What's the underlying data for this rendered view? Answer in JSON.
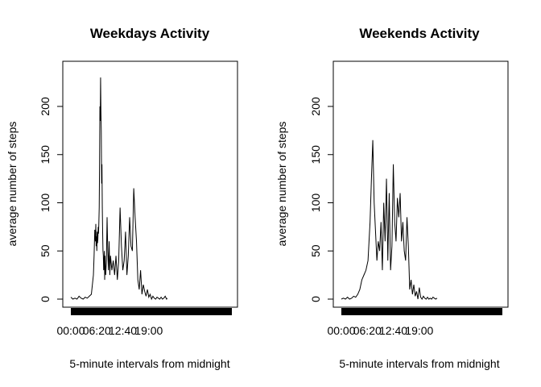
{
  "chart_data": [
    {
      "type": "line",
      "title": "Weekdays Activity",
      "xlabel": "5-minute intervals from midnight",
      "ylabel": "average number of steps",
      "xlim": [
        0,
        2355
      ],
      "ylim": [
        0,
        230
      ],
      "y_ticks": [
        "0",
        "50",
        "100",
        "150",
        "200"
      ],
      "x_ticks": [
        "00:00",
        "06:20",
        "12:40",
        "19:00"
      ],
      "x_tick_values": [
        0,
        380,
        760,
        1140
      ],
      "rug": true,
      "series": [
        {
          "x": [
            0,
            30,
            60,
            90,
            120,
            150,
            180,
            210,
            240,
            270,
            300,
            330,
            340,
            350,
            360,
            365,
            370,
            375,
            380,
            385,
            390,
            395,
            400,
            405,
            410,
            415,
            420,
            425,
            430,
            435,
            440,
            445,
            450,
            455,
            460,
            465,
            470,
            475,
            480,
            485,
            490,
            495,
            500,
            505,
            510,
            520,
            530,
            540,
            550,
            560,
            570,
            580,
            600,
            620,
            640,
            660,
            680,
            700,
            720,
            740,
            760,
            780,
            800,
            820,
            840,
            860,
            880,
            900,
            920,
            940,
            960,
            980,
            1000,
            1020,
            1040,
            1060,
            1080,
            1100,
            1120,
            1140,
            1160,
            1180,
            1200,
            1220,
            1240,
            1260,
            1280,
            1300,
            1320,
            1340,
            1360,
            1380,
            1400,
            1410
          ],
          "values": [
            2,
            0,
            1,
            0,
            3,
            1,
            0,
            2,
            1,
            3,
            5,
            25,
            45,
            72,
            60,
            78,
            55,
            65,
            50,
            70,
            58,
            62,
            75,
            68,
            80,
            95,
            140,
            200,
            185,
            230,
            195,
            175,
            120,
            140,
            95,
            70,
            50,
            45,
            30,
            35,
            50,
            20,
            45,
            30,
            25,
            40,
            85,
            50,
            30,
            60,
            25,
            45,
            30,
            40,
            25,
            45,
            20,
            40,
            95,
            55,
            30,
            40,
            70,
            25,
            45,
            85,
            55,
            50,
            115,
            85,
            60,
            20,
            10,
            30,
            5,
            15,
            8,
            3,
            10,
            2,
            5,
            0,
            3,
            1,
            0,
            2,
            1,
            0,
            2,
            0,
            1,
            3,
            0,
            1
          ]
        }
      ]
    },
    {
      "type": "line",
      "title": "Weekends Activity",
      "xlabel": "5-minute intervals from midnight",
      "ylabel": "average number of steps",
      "xlim": [
        0,
        2355
      ],
      "ylim": [
        0,
        230
      ],
      "y_ticks": [
        "0",
        "50",
        "100",
        "150",
        "200"
      ],
      "x_ticks": [
        "00:00",
        "06:20",
        "12:40",
        "19:00"
      ],
      "x_tick_values": [
        0,
        380,
        760,
        1140
      ],
      "rug": true,
      "series": [
        {
          "x": [
            0,
            30,
            60,
            90,
            120,
            150,
            180,
            210,
            240,
            270,
            300,
            330,
            360,
            390,
            420,
            440,
            460,
            480,
            500,
            520,
            540,
            560,
            580,
            600,
            620,
            640,
            660,
            680,
            700,
            720,
            740,
            760,
            780,
            800,
            820,
            840,
            860,
            880,
            900,
            920,
            940,
            960,
            980,
            1000,
            1020,
            1040,
            1060,
            1080,
            1100,
            1120,
            1140,
            1160,
            1180,
            1200,
            1220,
            1240,
            1260,
            1280,
            1300,
            1320,
            1340,
            1360,
            1380,
            1400
          ],
          "values": [
            0,
            1,
            0,
            2,
            0,
            1,
            3,
            2,
            5,
            10,
            20,
            25,
            30,
            40,
            80,
            125,
            165,
            100,
            70,
            40,
            60,
            50,
            80,
            30,
            100,
            60,
            125,
            40,
            110,
            30,
            55,
            140,
            80,
            60,
            105,
            85,
            110,
            60,
            80,
            50,
            40,
            85,
            55,
            10,
            20,
            5,
            15,
            3,
            8,
            0,
            12,
            2,
            0,
            3,
            1,
            0,
            2,
            0,
            1,
            0,
            2,
            1,
            0,
            1
          ]
        }
      ]
    }
  ]
}
